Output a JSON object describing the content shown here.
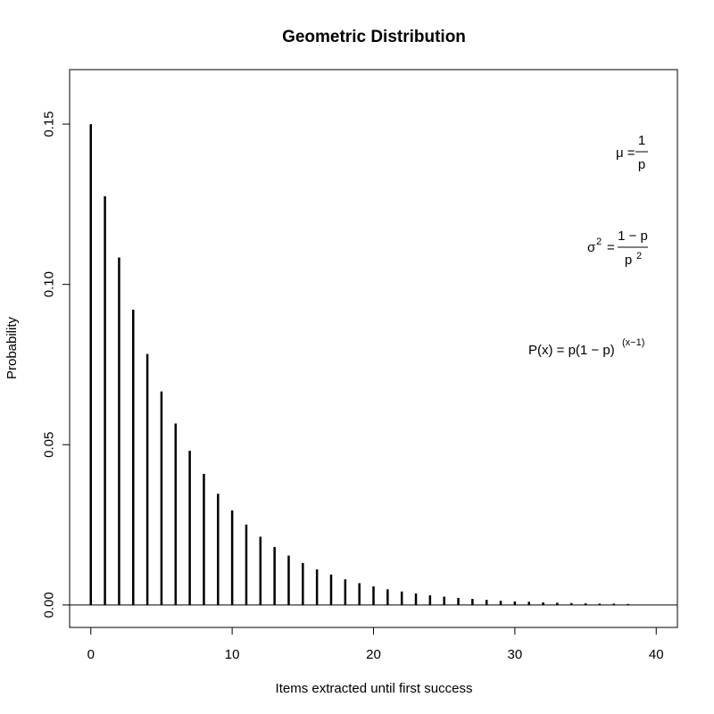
{
  "chart_data": {
    "type": "bar",
    "title": "Geometric Distribution",
    "xlabel": "Items extracted until first success",
    "ylabel": "Probability",
    "xlim": [
      -1.5,
      41.5
    ],
    "ylim": [
      -0.007,
      0.167
    ],
    "x_ticks": [
      "0",
      "10",
      "20",
      "30",
      "40"
    ],
    "x_tick_values": [
      0,
      10,
      20,
      30,
      40
    ],
    "y_ticks": [
      "0.00",
      "0.05",
      "0.10",
      "0.15"
    ],
    "y_tick_values": [
      0,
      0.05,
      0.1,
      0.15
    ],
    "x": [
      0,
      1,
      2,
      3,
      4,
      5,
      6,
      7,
      8,
      9,
      10,
      11,
      12,
      13,
      14,
      15,
      16,
      17,
      18,
      19,
      20,
      21,
      22,
      23,
      24,
      25,
      26,
      27,
      28,
      29,
      30,
      31,
      32,
      33,
      34,
      35,
      36,
      37,
      38
    ],
    "values": [
      0.15,
      0.1275,
      0.1084,
      0.0921,
      0.0783,
      0.0666,
      0.0566,
      0.0481,
      0.0409,
      0.0347,
      0.0295,
      0.0251,
      0.0213,
      0.0181,
      0.0154,
      0.0131,
      0.0111,
      0.0095,
      0.008,
      0.0068,
      0.0058,
      0.0049,
      0.0042,
      0.0036,
      0.003,
      0.0026,
      0.0022,
      0.0019,
      0.0016,
      0.0013,
      0.0011,
      0.001,
      0.0008,
      0.0007,
      0.0006,
      0.0005,
      0.0004,
      0.0004,
      0.0003
    ],
    "reference_line": 0,
    "annotations": {
      "mu_lhs": "μ =",
      "mu_num": "1",
      "mu_den": "p",
      "var_lhs": "σ",
      "var_lhs_sup": "2",
      "var_eq": "=",
      "var_num": "1 − p",
      "var_den": "p",
      "var_den_sup": "2",
      "pmf_main": "P(x) = p(1 − p)",
      "pmf_sup": "(x−1)"
    }
  }
}
